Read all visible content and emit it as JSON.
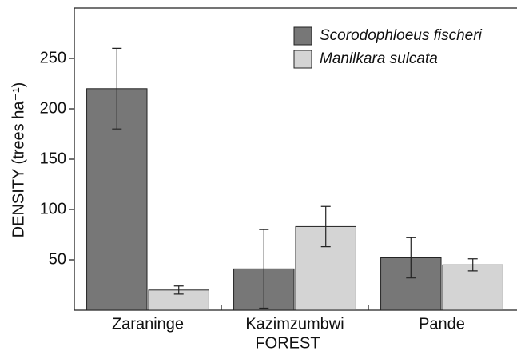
{
  "chart_data": {
    "type": "bar",
    "xlabel": "FOREST",
    "ylabel": "DENSITY (trees ha⁻¹)",
    "categories": [
      "Zaraninge",
      "Kazimzumbwi",
      "Pande"
    ],
    "series": [
      {
        "name": "Scorodophloeus fischeri",
        "color": "#777777",
        "values": [
          220,
          41,
          52
        ],
        "errors": [
          40,
          39,
          20
        ]
      },
      {
        "name": "Manilkara sulcata",
        "color": "#d4d4d4",
        "values": [
          20,
          83,
          45
        ],
        "errors": [
          4,
          20,
          6
        ]
      }
    ],
    "ylim": [
      0,
      300
    ],
    "yticks": [
      50,
      100,
      150,
      200,
      250
    ],
    "grid": false,
    "legend": "upper right"
  }
}
